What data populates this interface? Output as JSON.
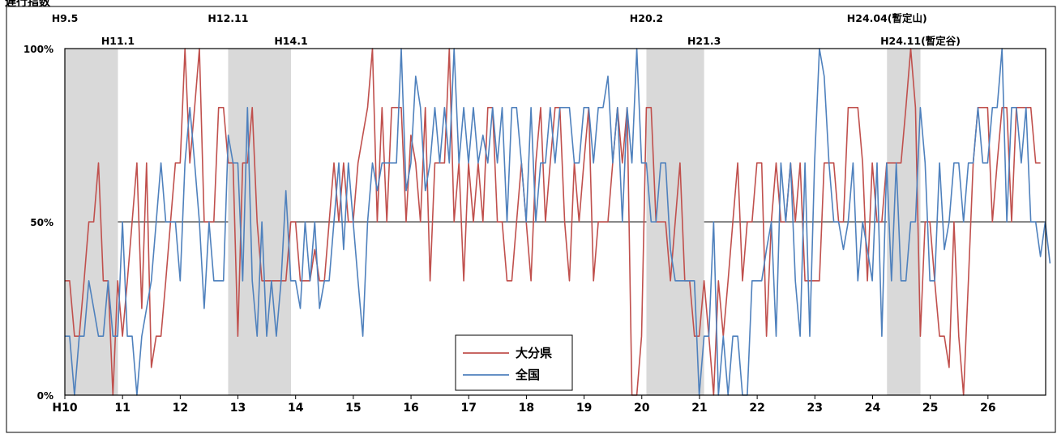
{
  "chart_data": {
    "type": "line",
    "title": "遅行指数",
    "ylim": [
      0,
      100
    ],
    "yticks": [
      "0%",
      "50%",
      "100%"
    ],
    "reference_line": 50,
    "x_range": [
      10,
      27
    ],
    "xticks": [
      {
        "x": 10,
        "label": "H10"
      },
      {
        "x": 11,
        "label": "11"
      },
      {
        "x": 12,
        "label": "12"
      },
      {
        "x": 13,
        "label": "13"
      },
      {
        "x": 14,
        "label": "14"
      },
      {
        "x": 15,
        "label": "15"
      },
      {
        "x": 16,
        "label": "16"
      },
      {
        "x": 17,
        "label": "17"
      },
      {
        "x": 18,
        "label": "18"
      },
      {
        "x": 19,
        "label": "19"
      },
      {
        "x": 20,
        "label": "20"
      },
      {
        "x": 21,
        "label": "21"
      },
      {
        "x": 22,
        "label": "22"
      },
      {
        "x": 23,
        "label": "23"
      },
      {
        "x": 24,
        "label": "24"
      },
      {
        "x": 25,
        "label": "25"
      },
      {
        "x": 26,
        "label": "26"
      }
    ],
    "recessions": [
      {
        "peak": "H9.5",
        "trough": "H11.1",
        "start": 10.0,
        "end": 10.92
      },
      {
        "peak": "H12.11",
        "trough": "H14.1",
        "start": 12.83,
        "end": 13.92
      },
      {
        "peak": "H20.2",
        "trough": "H21.3",
        "start": 20.08,
        "end": 21.08
      },
      {
        "peak": "H24.04(暫定山)",
        "trough": "H24.11(暫定谷)",
        "start": 24.25,
        "end": 24.83
      }
    ],
    "legend_position": "bottom-center",
    "series": [
      {
        "name": "大分県",
        "color": "#c0504d",
        "x_start": 10.0,
        "x_step": 0.0833,
        "values": [
          33,
          33,
          17,
          17,
          33,
          50,
          50,
          67,
          33,
          33,
          0,
          33,
          17,
          33,
          50,
          67,
          25,
          67,
          8,
          17,
          17,
          33,
          50,
          67,
          67,
          100,
          67,
          83,
          100,
          50,
          50,
          50,
          83,
          83,
          67,
          67,
          17,
          67,
          67,
          83,
          50,
          33,
          33,
          33,
          33,
          33,
          33,
          50,
          50,
          33,
          33,
          33,
          42,
          33,
          33,
          50,
          67,
          50,
          67,
          50,
          50,
          67,
          75,
          83,
          100,
          50,
          83,
          50,
          83,
          83,
          83,
          50,
          75,
          67,
          50,
          83,
          33,
          67,
          67,
          67,
          100,
          50,
          67,
          33,
          67,
          50,
          67,
          50,
          83,
          83,
          50,
          50,
          33,
          33,
          50,
          67,
          50,
          33,
          67,
          83,
          50,
          67,
          83,
          83,
          50,
          33,
          67,
          50,
          67,
          83,
          33,
          50,
          50,
          50,
          67,
          83,
          67,
          83,
          0,
          0,
          17,
          83,
          83,
          50,
          50,
          50,
          33,
          50,
          67,
          33,
          33,
          17,
          17,
          33,
          17,
          0,
          33,
          17,
          33,
          50,
          67,
          33,
          50,
          50,
          67,
          67,
          17,
          50,
          67,
          50,
          50,
          67,
          50,
          67,
          33,
          33,
          33,
          33,
          67,
          67,
          67,
          50,
          50,
          83,
          83,
          83,
          67,
          33,
          67,
          50,
          50,
          67,
          67,
          67,
          67,
          83,
          100,
          83,
          17,
          50,
          50,
          33,
          17,
          17,
          8,
          50,
          17,
          0,
          33,
          67,
          83,
          83,
          83,
          50,
          67,
          83,
          83,
          50,
          83,
          83,
          83,
          83,
          67,
          67
        ]
      },
      {
        "name": "全国",
        "color": "#4f81bd",
        "x_start": 10.0,
        "x_step": 0.0833,
        "values": [
          17,
          17,
          0,
          17,
          17,
          33,
          25,
          17,
          17,
          33,
          17,
          17,
          50,
          17,
          17,
          0,
          17,
          25,
          33,
          50,
          67,
          50,
          50,
          50,
          33,
          67,
          83,
          67,
          50,
          25,
          50,
          33,
          33,
          33,
          75,
          67,
          67,
          33,
          83,
          33,
          17,
          50,
          17,
          33,
          17,
          33,
          59,
          33,
          33,
          25,
          50,
          33,
          50,
          25,
          33,
          33,
          50,
          67,
          42,
          67,
          50,
          33,
          17,
          50,
          67,
          59,
          67,
          67,
          67,
          67,
          100,
          59,
          67,
          92,
          83,
          59,
          67,
          83,
          67,
          83,
          67,
          100,
          67,
          83,
          67,
          83,
          67,
          75,
          67,
          83,
          67,
          83,
          50,
          83,
          83,
          67,
          50,
          83,
          50,
          67,
          67,
          83,
          67,
          83,
          83,
          83,
          67,
          67,
          83,
          83,
          67,
          83,
          83,
          92,
          67,
          83,
          50,
          83,
          67,
          100,
          67,
          67,
          50,
          50,
          67,
          67,
          42,
          33,
          33,
          33,
          33,
          33,
          0,
          17,
          17,
          50,
          0,
          17,
          0,
          17,
          17,
          0,
          0,
          33,
          33,
          33,
          42,
          50,
          17,
          67,
          50,
          67,
          33,
          17,
          67,
          17,
          67,
          100,
          92,
          67,
          50,
          50,
          42,
          50,
          67,
          33,
          50,
          42,
          33,
          67,
          17,
          67,
          33,
          67,
          33,
          33,
          50,
          50,
          83,
          67,
          33,
          33,
          67,
          42,
          50,
          67,
          67,
          50,
          67,
          67,
          83,
          67,
          67,
          83,
          83,
          100,
          50,
          83,
          83,
          67,
          83,
          50,
          50,
          40,
          50,
          38
        ]
      }
    ]
  }
}
